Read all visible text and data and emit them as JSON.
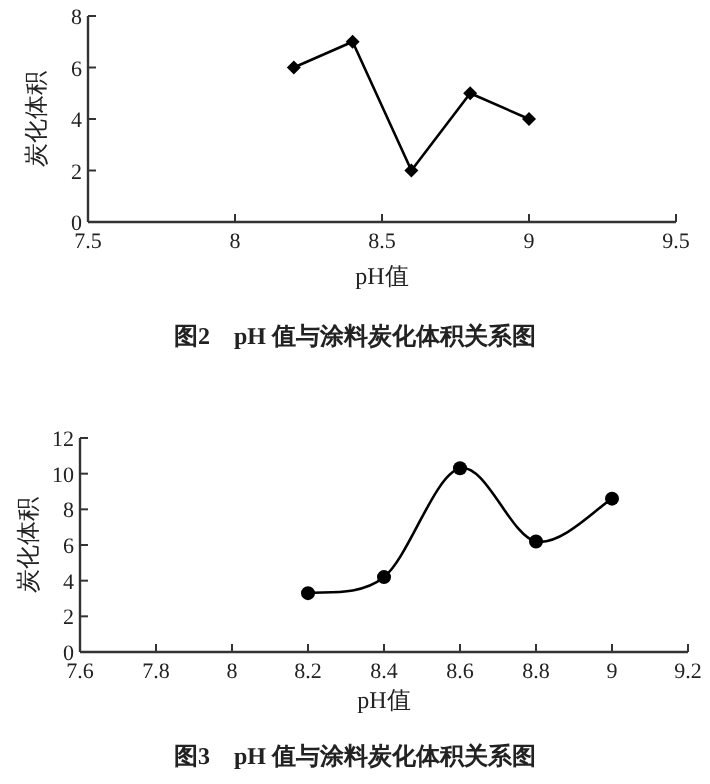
{
  "chart_data": [
    {
      "type": "line",
      "title": "图2　pH 值与涂料炭化体积关系图",
      "xlabel": "pH值",
      "ylabel": "炭化体积",
      "x": [
        8.2,
        8.4,
        8.6,
        8.8,
        9
      ],
      "series": [
        {
          "color": "#000000",
          "values": [
            6,
            7,
            2,
            5,
            4
          ]
        }
      ],
      "xlim": [
        7.5,
        9.5
      ],
      "xticks": [
        7.5,
        8,
        8.5,
        9,
        9.5
      ],
      "ylim": [
        0,
        8
      ],
      "yticks": [
        0,
        2,
        4,
        6,
        8
      ],
      "marker": "diamond",
      "line_style": "solid",
      "grid": false
    },
    {
      "type": "line",
      "title": "图3　pH 值与涂料炭化体积关系图",
      "xlabel": "pH值",
      "ylabel": "炭化体积",
      "x": [
        8.2,
        8.4,
        8.6,
        8.8,
        9
      ],
      "series": [
        {
          "color": "#000000",
          "values": [
            3.3,
            4.2,
            10.3,
            6.2,
            8.6
          ]
        }
      ],
      "xlim": [
        7.6,
        9.2
      ],
      "xticks": [
        7.6,
        7.8,
        8,
        8.2,
        8.4,
        8.6,
        8.8,
        9,
        9.2
      ],
      "ylim": [
        0,
        12
      ],
      "yticks": [
        0,
        2,
        4,
        6,
        8,
        10,
        12
      ],
      "marker": "circle",
      "line_style": "solid",
      "grid": false
    }
  ]
}
